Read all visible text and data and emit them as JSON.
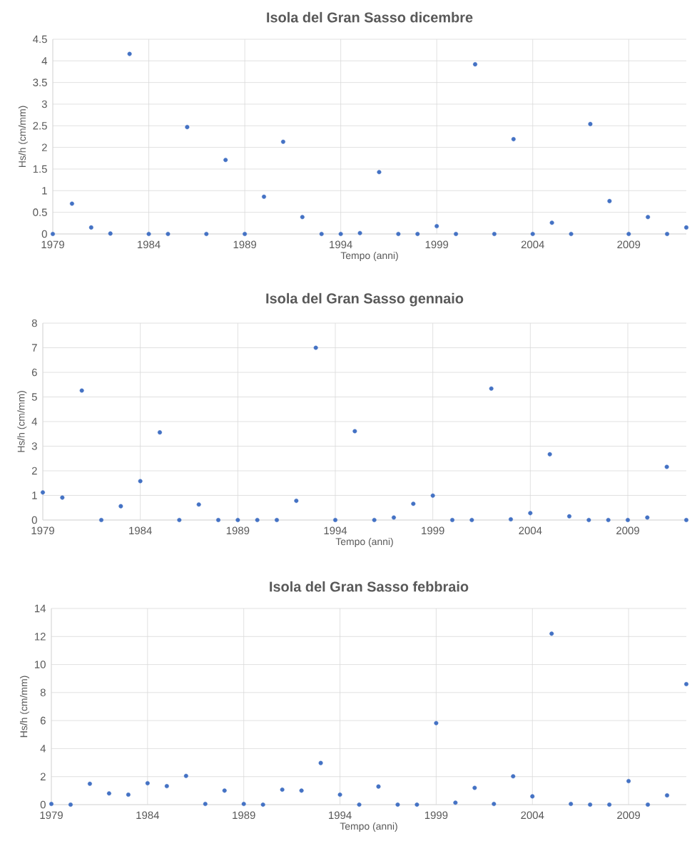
{
  "chart_data": [
    {
      "type": "scatter",
      "title": "Isola del Gran Sasso dicembre",
      "xlabel": "Tempo (anni)",
      "ylabel": "Hs/h (cm/mm)",
      "color": "#4472c4",
      "marker": "circle",
      "grid": true,
      "x": [
        1979,
        1980,
        1981,
        1982,
        1983,
        1984,
        1985,
        1986,
        1987,
        1988,
        1989,
        1990,
        1991,
        1992,
        1993,
        1994,
        1995,
        1996,
        1997,
        1998,
        1999,
        2000,
        2001,
        2002,
        2003,
        2004,
        2005,
        2006,
        2007,
        2008,
        2009,
        2010,
        2011,
        2012
      ],
      "values": [
        0,
        0.7,
        0.15,
        0.01,
        4.16,
        0,
        0,
        2.47,
        0,
        1.71,
        0,
        0.86,
        2.13,
        0.39,
        0,
        0,
        0.02,
        1.43,
        0,
        0,
        0.18,
        0,
        3.92,
        0,
        2.19,
        0,
        0.26,
        0,
        2.54,
        0.76,
        0,
        0.39,
        0,
        0.15
      ],
      "xlim": [
        1979,
        2012
      ],
      "ylim": [
        0,
        4.5
      ],
      "xticks": [
        1979,
        1984,
        1989,
        1994,
        1999,
        2004,
        2009
      ],
      "yticks": [
        0,
        0.5,
        1,
        1.5,
        2,
        2.5,
        3,
        3.5,
        4,
        4.5
      ]
    },
    {
      "type": "scatter",
      "title": "Isola del Gran Sasso gennaio",
      "xlabel": "Tempo (anni)",
      "ylabel": "Hs/h (cm/mm)",
      "color": "#4472c4",
      "marker": "circle",
      "grid": true,
      "x": [
        1979,
        1980,
        1981,
        1982,
        1983,
        1984,
        1985,
        1986,
        1987,
        1988,
        1989,
        1990,
        1991,
        1992,
        1993,
        1994,
        1995,
        1996,
        1997,
        1998,
        1999,
        2000,
        2001,
        2002,
        2003,
        2004,
        2005,
        2006,
        2007,
        2008,
        2009,
        2010,
        2011,
        2012
      ],
      "values": [
        1.12,
        0.91,
        5.26,
        0,
        0.56,
        1.58,
        3.56,
        0,
        0.63,
        0,
        0,
        0,
        0,
        0.78,
        7.0,
        0,
        3.61,
        0,
        0.1,
        0.66,
        0.99,
        0,
        0,
        5.34,
        0.03,
        0.28,
        2.67,
        0.15,
        0,
        0,
        0,
        0.1,
        2.16,
        0
      ],
      "xlim": [
        1979,
        2012
      ],
      "ylim": [
        0,
        8
      ],
      "xticks": [
        1979,
        1984,
        1989,
        1994,
        1999,
        2004,
        2009
      ],
      "yticks": [
        0,
        1,
        2,
        3,
        4,
        5,
        6,
        7,
        8
      ]
    },
    {
      "type": "scatter",
      "title": "Isola del Gran Sasso febbraio",
      "xlabel": "Tempo (anni)",
      "ylabel": "Hs/h (cm/mm)",
      "color": "#4472c4",
      "marker": "circle",
      "grid": true,
      "x": [
        1979,
        1980,
        1981,
        1982,
        1983,
        1984,
        1985,
        1986,
        1987,
        1988,
        1989,
        1990,
        1991,
        1992,
        1993,
        1994,
        1995,
        1996,
        1997,
        1998,
        1999,
        2000,
        2001,
        2002,
        2003,
        2004,
        2005,
        2006,
        2007,
        2008,
        2009,
        2010,
        2011,
        2012
      ],
      "values": [
        0.05,
        0,
        1.49,
        0.8,
        0.71,
        1.53,
        1.32,
        2.05,
        0.05,
        1.0,
        0.05,
        0,
        1.07,
        1.0,
        2.97,
        0.71,
        0,
        1.29,
        0,
        0,
        5.82,
        0.14,
        1.2,
        0.05,
        2.02,
        0.59,
        12.2,
        0.05,
        0,
        0,
        1.68,
        0,
        0.66,
        8.6
      ],
      "xlim": [
        1979,
        2012
      ],
      "ylim": [
        0,
        14
      ],
      "xticks": [
        1979,
        1984,
        1989,
        1994,
        1999,
        2004,
        2009
      ],
      "yticks": [
        0,
        2,
        4,
        6,
        8,
        10,
        12,
        14
      ]
    }
  ]
}
